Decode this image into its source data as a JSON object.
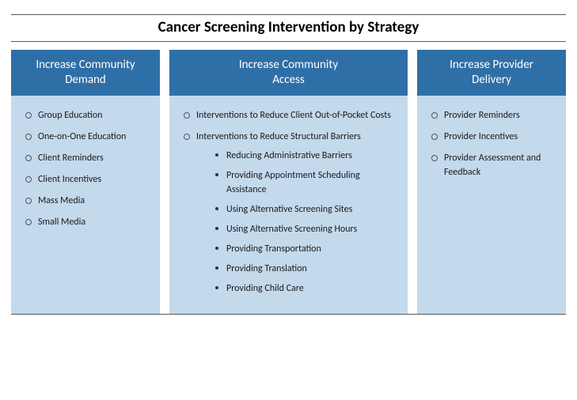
{
  "title": "Cancer Screening Intervention by Strategy",
  "colors": {
    "header_bg": "#2f6fa7",
    "body_bg": "#c3d9ec",
    "rule": "#595959",
    "title_text": "#000000",
    "header_text": "#ffffff",
    "body_text": "#1a1a1a"
  },
  "font": {
    "family": "Calibri",
    "title_size_pt": 19,
    "header_size_pt": 15,
    "body_size_pt": 12
  },
  "columns": [
    {
      "heading_lines": [
        "Increase Community",
        "Demand"
      ],
      "items": [
        {
          "text": "Group Education"
        },
        {
          "text": "One-on-One Education"
        },
        {
          "text": "Client Reminders"
        },
        {
          "text": "Client Incentives"
        },
        {
          "text": "Mass Media"
        },
        {
          "text": "Small Media"
        }
      ]
    },
    {
      "heading_lines": [
        "Increase Community",
        "Access"
      ],
      "items": [
        {
          "text": "Interventions to Reduce Client Out-of-Pocket Costs"
        },
        {
          "text": "Interventions to Reduce Structural Barriers",
          "sub": [
            "Reducing Administrative Barriers",
            "Providing Appointment Scheduling Assistance",
            "Using Alternative Screening Sites",
            "Using Alternative Screening Hours",
            "Providing Transportation",
            "Providing Translation",
            "Providing Child Care"
          ]
        }
      ]
    },
    {
      "heading_lines": [
        "Increase Provider",
        "Delivery"
      ],
      "items": [
        {
          "text": "Provider Reminders"
        },
        {
          "text": "Provider Incentives"
        },
        {
          "text": "Provider Assessment and Feedback"
        }
      ]
    }
  ]
}
